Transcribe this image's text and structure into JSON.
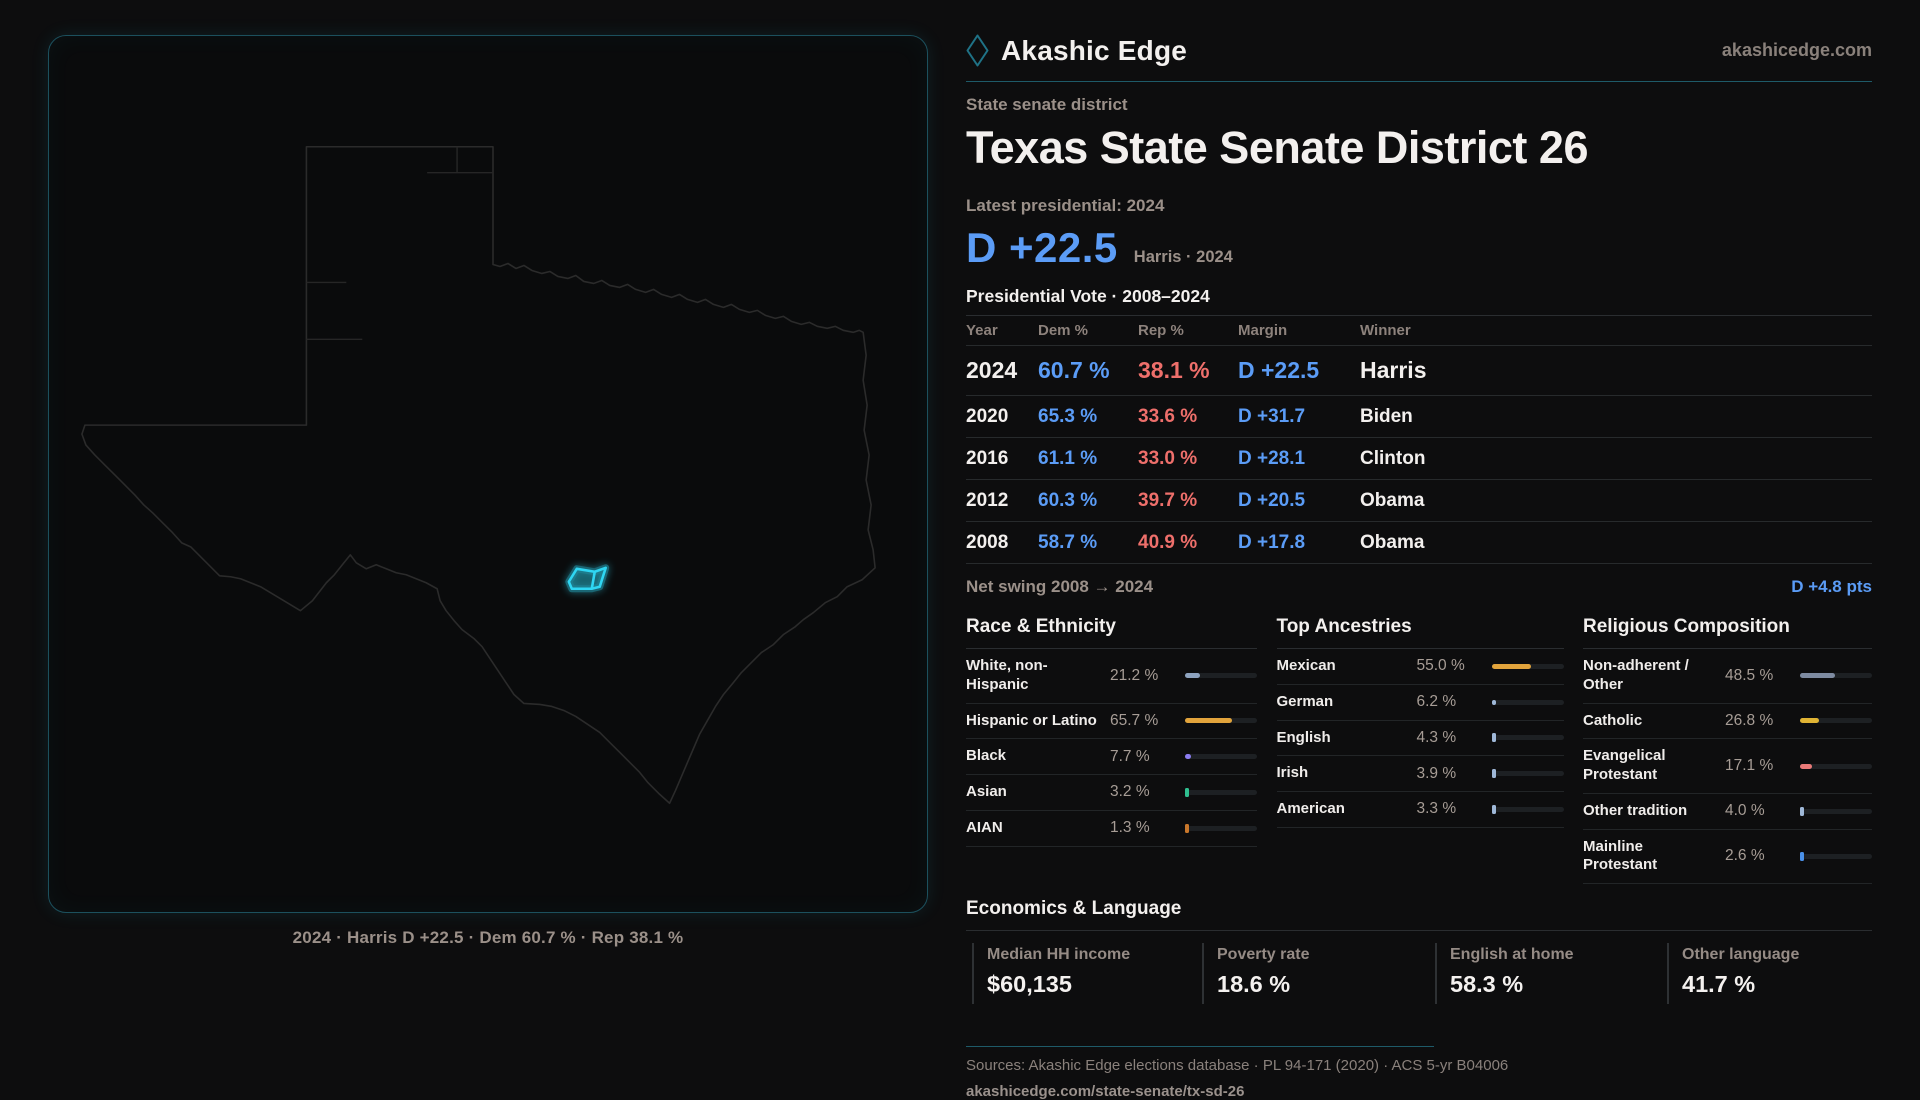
{
  "brand": {
    "name": "Akashic Edge",
    "domain": "akashicedge.com"
  },
  "page": {
    "kicker": "State senate district",
    "title": "Texas State Senate District 26",
    "latest_label": "Latest presidential: 2024",
    "margin_value": "D +22.5",
    "margin_detail": "Harris · 2024"
  },
  "map": {
    "caption": "2024 · Harris D +22.5 · Dem 60.7 % · Rep 38.1 %",
    "district_color": "#2fd6f2",
    "outline_color": "#2b2b2b"
  },
  "table": {
    "title": "Presidential Vote · 2008–2024",
    "columns": [
      "Year",
      "Dem %",
      "Rep %",
      "Margin",
      "Winner"
    ],
    "rows": [
      {
        "year": "2024",
        "dem": "60.7 %",
        "rep": "38.1 %",
        "margin": "D +22.5",
        "winner": "Harris"
      },
      {
        "year": "2020",
        "dem": "65.3 %",
        "rep": "33.6 %",
        "margin": "D +31.7",
        "winner": "Biden"
      },
      {
        "year": "2016",
        "dem": "61.1 %",
        "rep": "33.0 %",
        "margin": "D +28.1",
        "winner": "Clinton"
      },
      {
        "year": "2012",
        "dem": "60.3 %",
        "rep": "39.7 %",
        "margin": "D +20.5",
        "winner": "Obama"
      },
      {
        "year": "2008",
        "dem": "58.7 %",
        "rep": "40.9 %",
        "margin": "D +17.8",
        "winner": "Obama"
      }
    ]
  },
  "net_swing": {
    "label": "Net swing 2008 → 2024",
    "value": "D +4.8 pts"
  },
  "demographics": [
    {
      "title": "Race & Ethnicity",
      "rows": [
        {
          "label": "White, non-Hispanic",
          "value": "21.2 %",
          "pct": 21.2,
          "color": "#8ea3bf"
        },
        {
          "label": "Hispanic or Latino",
          "value": "65.7 %",
          "pct": 65.7,
          "color": "#e2a43c"
        },
        {
          "label": "Black",
          "value": "7.7 %",
          "pct": 7.7,
          "color": "#8b7cf0"
        },
        {
          "label": "Asian",
          "value": "3.2 %",
          "pct": 3.2,
          "color": "#2fbf8f"
        },
        {
          "label": "AIAN",
          "value": "1.3 %",
          "pct": 1.3,
          "color": "#c9772b"
        }
      ]
    },
    {
      "title": "Top Ancestries",
      "rows": [
        {
          "label": "Mexican",
          "value": "55.0 %",
          "pct": 55.0,
          "color": "#e2a43c"
        },
        {
          "label": "German",
          "value": "6.2 %",
          "pct": 6.2,
          "color": "#9fb8d8"
        },
        {
          "label": "English",
          "value": "4.3 %",
          "pct": 4.3,
          "color": "#9fb8d8"
        },
        {
          "label": "Irish",
          "value": "3.9 %",
          "pct": 3.9,
          "color": "#9fb8d8"
        },
        {
          "label": "American",
          "value": "3.3 %",
          "pct": 3.3,
          "color": "#9fb8d8"
        }
      ]
    },
    {
      "title": "Religious Composition",
      "rows": [
        {
          "label": "Non-adherent / Other",
          "value": "48.5 %",
          "pct": 48.5,
          "color": "#7e8ba1"
        },
        {
          "label": "Catholic",
          "value": "26.8 %",
          "pct": 26.8,
          "color": "#e0b434"
        },
        {
          "label": "Evangelical Protestant",
          "value": "17.1 %",
          "pct": 17.1,
          "color": "#ea7a78"
        },
        {
          "label": "Other tradition",
          "value": "4.0 %",
          "pct": 4.0,
          "color": "#9fb8d8"
        },
        {
          "label": "Mainline Protestant",
          "value": "2.6 %",
          "pct": 2.6,
          "color": "#4a90e8"
        }
      ]
    }
  ],
  "economics": {
    "title": "Economics & Language",
    "stats": [
      {
        "label": "Median HH income",
        "value": "$60,135"
      },
      {
        "label": "Poverty rate",
        "value": "18.6 %"
      },
      {
        "label": "English at home",
        "value": "58.3 %"
      },
      {
        "label": "Other language",
        "value": "41.7 %"
      }
    ]
  },
  "footer": {
    "sources": "Sources: Akashic Edge elections database · PL 94-171 (2020) · ACS 5-yr B04006",
    "permalink": "akashicedge.com/state-senate/tx-sd-26"
  },
  "colors": {
    "dem": "#5b9cf6",
    "rep": "#ee6f6b",
    "accent_teal": "#1e5a68"
  }
}
